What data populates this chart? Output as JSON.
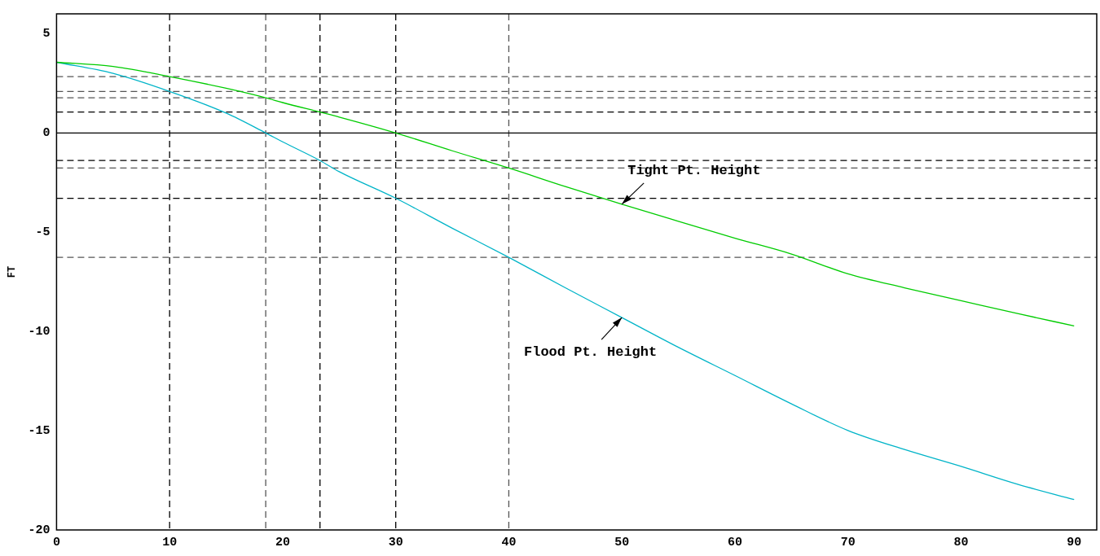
{
  "chart_data": {
    "type": "line",
    "ylabel": "FT",
    "xlim": [
      0,
      92
    ],
    "xticks": [
      0,
      10,
      20,
      30,
      40,
      50,
      60,
      70,
      80,
      90
    ],
    "ylim": [
      -20,
      6
    ],
    "yticks": [
      -20,
      -15,
      -10,
      -5,
      0,
      5
    ],
    "grid": false,
    "legend": false,
    "marker": "none",
    "line_style": "solid",
    "series": [
      {
        "color": "#00cc00",
        "x": [
          0,
          5,
          10,
          15,
          18.5,
          20,
          23.3,
          25,
          30,
          35,
          40,
          45,
          50,
          55,
          60,
          65,
          70,
          75,
          80,
          85,
          90
        ],
        "values": [
          3.56,
          3.35,
          2.84,
          2.25,
          1.77,
          1.53,
          1.05,
          0.8,
          0,
          -0.9,
          -1.77,
          -2.7,
          -3.59,
          -4.45,
          -5.3,
          -6.1,
          -7.1,
          -7.8,
          -8.45,
          -9.1,
          -9.72
        ]
      },
      {
        "color": "#00b4c8",
        "x": [
          0,
          5,
          10,
          15,
          18.5,
          20,
          23.3,
          25,
          30,
          35,
          40,
          45,
          50,
          55,
          60,
          65,
          70,
          75,
          80,
          85,
          90
        ],
        "values": [
          3.56,
          3.0,
          2.09,
          1.0,
          0,
          -0.45,
          -1.39,
          -1.95,
          -3.29,
          -4.8,
          -6.27,
          -7.8,
          -9.3,
          -10.8,
          -12.22,
          -13.65,
          -14.99,
          -15.95,
          -16.8,
          -17.7,
          -18.47
        ]
      }
    ],
    "ref_lines": [
      {
        "axis": "x",
        "value": 10,
        "color": "#000000",
        "line_style": "dashed"
      },
      {
        "axis": "x",
        "value": 18.5,
        "color": "#555555",
        "line_style": "dashed"
      },
      {
        "axis": "x",
        "value": 23.3,
        "color": "#000000",
        "line_style": "dashed"
      },
      {
        "axis": "x",
        "value": 30,
        "color": "#000000",
        "line_style": "dashed"
      },
      {
        "axis": "x",
        "value": 40,
        "color": "#555555",
        "line_style": "dashed"
      },
      {
        "axis": "y",
        "value": 2.84,
        "color": "#555555",
        "line_style": "dashed"
      },
      {
        "axis": "y",
        "value": 2.09,
        "color": "#555555",
        "line_style": "dashed"
      },
      {
        "axis": "y",
        "value": 1.77,
        "color": "#555555",
        "line_style": "dashed"
      },
      {
        "axis": "y",
        "value": 1.05,
        "color": "#000000",
        "line_style": "dashed"
      },
      {
        "axis": "y",
        "value": 0,
        "color": "#000000",
        "line_style": "solid"
      },
      {
        "axis": "y",
        "value": -1.39,
        "color": "#000000",
        "line_style": "dashed"
      },
      {
        "axis": "y",
        "value": -1.77,
        "color": "#555555",
        "line_style": "dashed"
      },
      {
        "axis": "y",
        "value": -3.29,
        "color": "#000000",
        "line_style": "dashed"
      },
      {
        "axis": "y",
        "value": -6.27,
        "color": "#555555",
        "line_style": "dashed"
      }
    ],
    "annotations": [
      {
        "text": "Tight Pt. Height",
        "x": 50,
        "y": -3.59
      },
      {
        "text": "Flood Pt. Height",
        "x": 50,
        "y": -9.3
      }
    ]
  }
}
